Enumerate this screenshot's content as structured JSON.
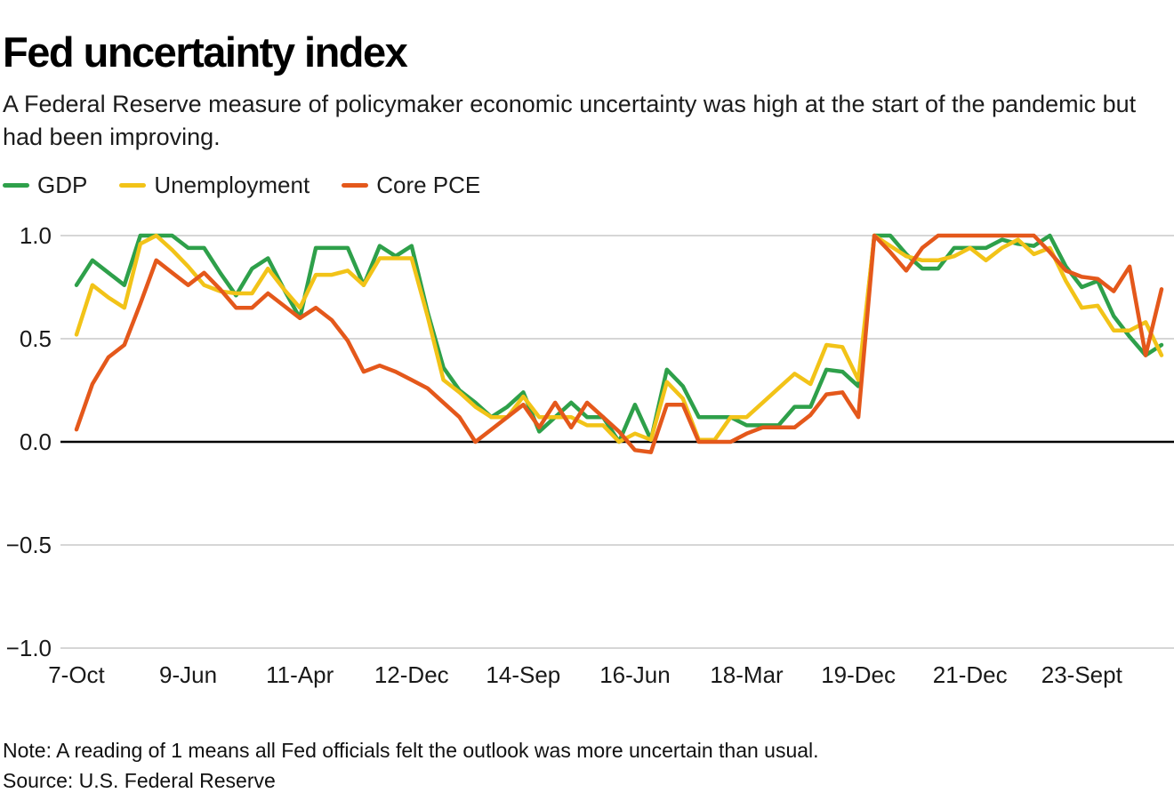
{
  "title": "Fed uncertainty index",
  "subtitle": "A Federal Reserve measure of policymaker economic uncertainty was high at the start of the pandemic but had been improving.",
  "legend": [
    {
      "label": "GDP",
      "color": "#2ea04a"
    },
    {
      "label": "Unemployment",
      "color": "#f2c318"
    },
    {
      "label": "Core PCE",
      "color": "#e4581b"
    }
  ],
  "note": "Note: A reading of 1 means all Fed officials felt the outlook was more uncertain than usual.",
  "source": "Source: U.S. Federal Reserve",
  "colors": {
    "gdp": "#2ea04a",
    "unemployment": "#f2c318",
    "core_pce": "#e4581b",
    "gridline": "#c9c9c9",
    "zero_axis": "#000000"
  },
  "chart_data": {
    "type": "line",
    "title": "Fed uncertainty index",
    "xlabel": "",
    "ylabel": "",
    "ylim": [
      -1.0,
      1.0
    ],
    "grid": true,
    "legend_position": "top-left",
    "y_ticks": [
      1.0,
      0.5,
      0.0,
      -0.5,
      -1.0
    ],
    "y_tick_labels": [
      "1.0",
      "0.5",
      "0.0",
      "−0.5",
      "−1.0"
    ],
    "x_tick_labels": [
      "7-Oct",
      "9-Jun",
      "11-Apr",
      "12-Dec",
      "14-Sep",
      "16-Jun",
      "18-Mar",
      "19-Dec",
      "21-Dec",
      "23-Sept"
    ],
    "x_tick_indices": [
      0,
      7,
      14,
      21,
      28,
      35,
      42,
      49,
      56,
      63
    ],
    "series": [
      {
        "name": "GDP",
        "color": "#2ea04a",
        "values": [
          0.76,
          0.88,
          0.82,
          0.76,
          1.0,
          1.0,
          1.0,
          0.94,
          0.94,
          0.82,
          0.71,
          0.84,
          0.89,
          0.74,
          0.6,
          0.94,
          0.94,
          0.94,
          0.76,
          0.95,
          0.9,
          0.95,
          0.63,
          0.36,
          0.25,
          0.19,
          0.12,
          0.17,
          0.24,
          0.05,
          0.12,
          0.19,
          0.12,
          0.12,
          0.0,
          0.18,
          0.01,
          0.35,
          0.27,
          0.12,
          0.12,
          0.12,
          0.08,
          0.08,
          0.08,
          0.17,
          0.17,
          0.35,
          0.34,
          0.27,
          1.0,
          1.0,
          0.91,
          0.84,
          0.84,
          0.94,
          0.94,
          0.94,
          0.98,
          0.96,
          0.95,
          1.0,
          0.85,
          0.75,
          0.78,
          0.61,
          0.51,
          0.42,
          0.47
        ]
      },
      {
        "name": "Unemployment",
        "color": "#f2c318",
        "values": [
          0.52,
          0.76,
          0.7,
          0.65,
          0.96,
          1.0,
          0.93,
          0.85,
          0.76,
          0.73,
          0.72,
          0.72,
          0.84,
          0.74,
          0.65,
          0.81,
          0.81,
          0.83,
          0.76,
          0.89,
          0.89,
          0.89,
          0.61,
          0.3,
          0.24,
          0.17,
          0.12,
          0.12,
          0.22,
          0.12,
          0.12,
          0.12,
          0.08,
          0.08,
          0.0,
          0.04,
          0.01,
          0.29,
          0.21,
          0.01,
          0.01,
          0.12,
          0.12,
          0.19,
          0.26,
          0.33,
          0.28,
          0.47,
          0.46,
          0.3,
          1.0,
          0.95,
          0.9,
          0.88,
          0.88,
          0.9,
          0.94,
          0.88,
          0.94,
          0.98,
          0.91,
          0.94,
          0.78,
          0.65,
          0.66,
          0.54,
          0.54,
          0.58,
          0.42
        ]
      },
      {
        "name": "Core PCE",
        "color": "#e4581b",
        "values": [
          0.06,
          0.28,
          0.41,
          0.47,
          0.67,
          0.88,
          0.82,
          0.76,
          0.82,
          0.74,
          0.65,
          0.65,
          0.72,
          0.66,
          0.6,
          0.65,
          0.59,
          0.49,
          0.34,
          0.37,
          0.34,
          0.3,
          0.26,
          0.19,
          0.12,
          0.0,
          0.06,
          0.12,
          0.18,
          0.07,
          0.19,
          0.07,
          0.19,
          0.12,
          0.05,
          -0.04,
          -0.05,
          0.18,
          0.18,
          0.0,
          0.0,
          0.0,
          0.04,
          0.07,
          0.07,
          0.07,
          0.13,
          0.23,
          0.24,
          0.12,
          1.0,
          0.92,
          0.83,
          0.94,
          1.0,
          1.0,
          1.0,
          1.0,
          1.0,
          1.0,
          1.0,
          0.92,
          0.83,
          0.8,
          0.79,
          0.73,
          0.85,
          0.42,
          0.74
        ]
      }
    ]
  }
}
